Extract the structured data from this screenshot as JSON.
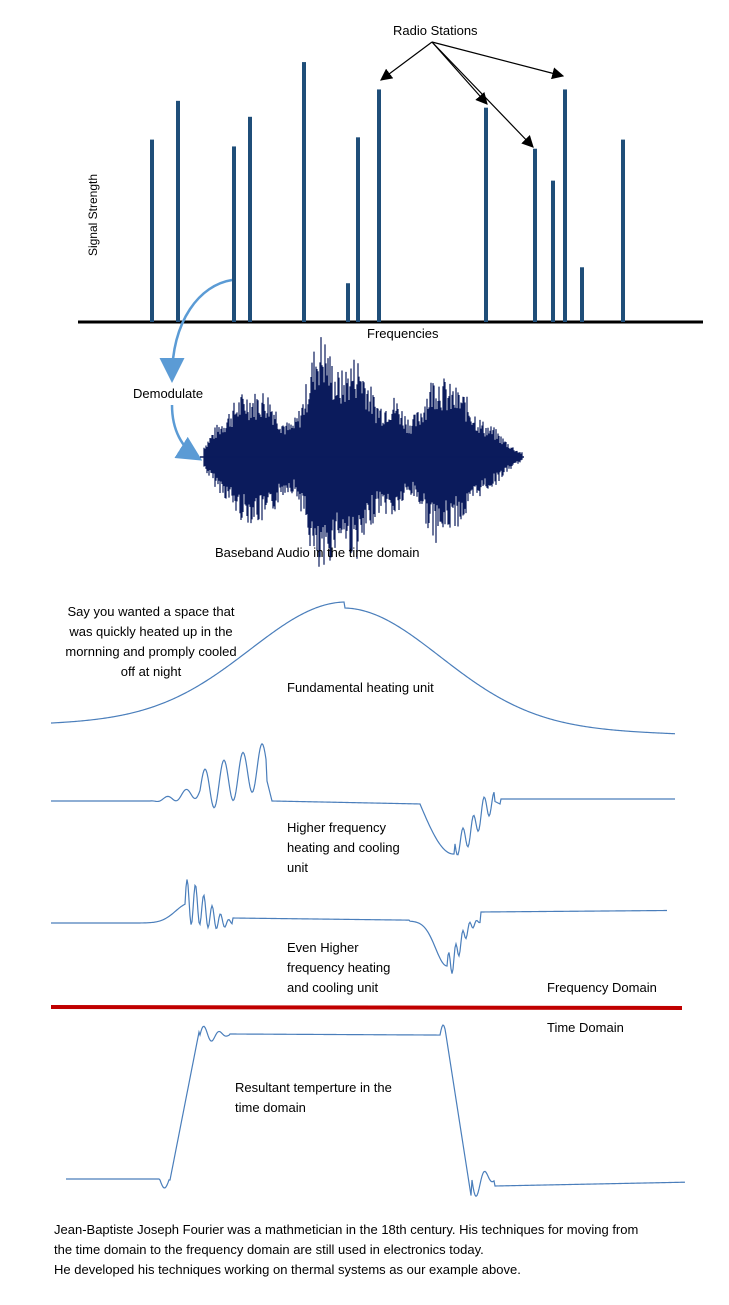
{
  "spectrum": {
    "title": "Radio Stations",
    "ylabel": "Signal Strength",
    "xlabel": "Frequencies",
    "bar_color": "#1f4e79",
    "arrow_color": "#5b9bd5",
    "bars": [
      {
        "freq": 1,
        "strength": 0.8
      },
      {
        "freq": 2,
        "strength": 0.97
      },
      {
        "freq": 3,
        "strength": 0.77
      },
      {
        "freq": 4,
        "strength": 0.9
      },
      {
        "freq": 5,
        "strength": 1.14
      },
      {
        "freq": 6,
        "strength": 0.17
      },
      {
        "freq": 7,
        "strength": 0.81
      },
      {
        "freq": 8,
        "strength": 1.02
      },
      {
        "freq": 9,
        "strength": 0.94
      },
      {
        "freq": 10,
        "strength": 0.76
      },
      {
        "freq": 11,
        "strength": 0.62
      },
      {
        "freq": 12,
        "strength": 1.02
      },
      {
        "freq": 13,
        "strength": 0.24
      },
      {
        "freq": 14,
        "strength": 0.8
      }
    ]
  },
  "demodulate_label": "Demodulate",
  "audio_label": "Baseband Audio in the time domain",
  "waveform_color": "#0b1b5c",
  "intro_text": "Say you wanted a space that was quickly heated up in the mornning and promply cooled off at night",
  "fundamental_label": "Fundamental heating unit",
  "higher_label": "Higher frequency heating and cooling unit",
  "even_higher_label": "Even Higher frequency heating and cooling unit",
  "frequency_domain_label": "Frequency Domain",
  "time_domain_label": "Time Domain",
  "resultant_label": "Resultant temperture in the time domain",
  "curve_color": "#4a7ebb",
  "divider_color": "#c00000",
  "footer": {
    "line1": "Jean-Baptiste Joseph Fourier was a mathmetician in the 18th century. His techniques for moving from",
    "line2": "the time domain to the frequency domain are still used in electronics today.",
    "line3": "He developed his techniques working on thermal systems as our example above."
  }
}
